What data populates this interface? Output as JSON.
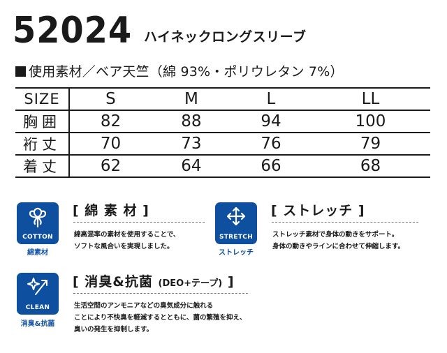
{
  "header": {
    "product_code": "52024",
    "product_name": "ハイネックロングスリーブ"
  },
  "material": {
    "text": "使用素材／ベア天竺（綿 93%・ポリウレタン 7%）"
  },
  "size_table": {
    "rows": [
      {
        "label": "SIZE",
        "values": [
          "S",
          "M",
          "L",
          "LL"
        ]
      },
      {
        "label": "胸囲",
        "values": [
          "82",
          "88",
          "94",
          "100"
        ]
      },
      {
        "label": "裄丈",
        "values": [
          "70",
          "73",
          "76",
          "79"
        ]
      },
      {
        "label": "着丈",
        "values": [
          "62",
          "64",
          "66",
          "68"
        ]
      }
    ]
  },
  "features": {
    "cotton": {
      "icon": "cotton-flower-icon",
      "icon_label": "COTTON",
      "caption": "綿素材",
      "title": "[ 綿 素 材 ]",
      "desc": [
        "綿高混率の素材を使用することで、",
        "ソフトな風合いを実現しました。"
      ]
    },
    "stretch": {
      "icon": "four-way-arrows-icon",
      "icon_label": "STRETCH",
      "caption": "ストレッチ",
      "title": "[ ストレッチ ]",
      "desc": [
        "ストレッチ素材で身体の動きをサポート。",
        "身体の動きやラインに合わせて伸縮します。"
      ]
    },
    "clean": {
      "icon": "sparkle-arrow-icon",
      "icon_label": "CLEAN",
      "caption": "消臭&抗菌",
      "title": "[ 消臭&抗菌",
      "title_sub": "(DEO+テープ)",
      "title_end": "]",
      "desc": [
        "生活空間のアンモニアなどの臭気成分に触れる",
        "ことにより不快臭を軽減するとともに、菌の繁殖を抑え、",
        "臭いの発生を抑制します。"
      ]
    }
  },
  "colors": {
    "icon_blue": "#0e4f9f",
    "text": "#1a1a1a"
  }
}
